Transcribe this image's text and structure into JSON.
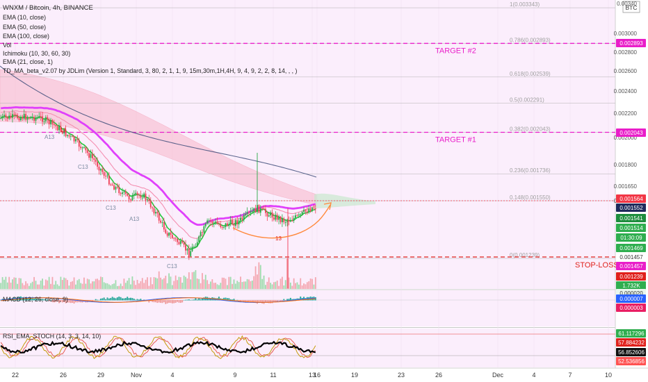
{
  "header": {
    "symbol": "WNXM / Bitcoin, 4h, BINANCE",
    "currency_label": "BTC",
    "indicators": [
      "EMA (10, close)",
      "EMA (50, close)",
      "EMA (100, close)",
      "Vol",
      "Ichimoku (10, 30, 60, 30)",
      "EMA (21, close, 1)",
      "TD_MA_beta_v2.07 by JDLim (Version 1, Standard, 3, 80, 2, 1, 1, 9, 15m,30m,1H,4H, 9, 4, 9, 2, 2, 8, 14, , , )"
    ]
  },
  "annotations": {
    "target2": "TARGET #2",
    "target1": "TARGET #1",
    "stoploss": "STOP-LOSS",
    "fib_levels": [
      {
        "text": "1(0.003343)",
        "price": 0.003343
      },
      {
        "text": "0.786(0.002893)",
        "price": 0.002893
      },
      {
        "text": "0.618(0.002539)",
        "price": 0.002539
      },
      {
        "text": "0.5(0.002291)",
        "price": 0.002291
      },
      {
        "text": "0.382(0.002043)",
        "price": 0.002043
      },
      {
        "text": "0.236(0.001736)",
        "price": 0.001736
      },
      {
        "text": "0.148(0.001550)",
        "price": 0.00155
      },
      {
        "text": "0(0.001239)",
        "price": 0.001239
      }
    ],
    "td_counts": [
      "A13",
      "13",
      "C13",
      "C13",
      "A13",
      "C13",
      "13"
    ]
  },
  "price_axis": {
    "ticks": [
      "0.00340",
      "0.003000",
      "0.002800",
      "0.002600",
      "0.002400",
      "0.002200",
      "0.002000",
      "0.001800",
      "0.001650",
      "0.001550"
    ],
    "tick_prices": [
      0.0034,
      0.003,
      0.0028,
      0.0026,
      0.0024,
      0.0022,
      0.002,
      0.0018,
      0.00165,
      0.00155
    ],
    "badges": [
      {
        "text": "0.002893",
        "price": 0.002893,
        "color": "#e91ec9"
      },
      {
        "text": "0.002043",
        "price": 0.002043,
        "color": "#e91ec9"
      },
      {
        "text": "0.001564",
        "price": 0.001564,
        "color": "#f23645"
      },
      {
        "text": "0.001552",
        "price": 0.001552,
        "color": "#1f2a5c"
      },
      {
        "text": "0.001541",
        "price": 0.001541,
        "color": "#1e8e3e"
      },
      {
        "text": "0.001514",
        "price": 0.001514,
        "color": "#2fae4f"
      },
      {
        "text": "01:30:09",
        "price": 0.00149,
        "color": "#2fae4f"
      },
      {
        "text": "0.001469",
        "price": 0.001469,
        "color": "#2fae4f"
      },
      {
        "text": "0.001457",
        "price": 0.001457,
        "color": "#ffffff",
        "text_color": "#333333"
      },
      {
        "text": "0.001457",
        "price": 0.001447,
        "color": "#e91ec9"
      },
      {
        "text": "0.001239",
        "price": 0.001239,
        "color": "#e0211c"
      },
      {
        "text": "1.732K",
        "price": 0.00121,
        "color": "#2fae4f"
      }
    ]
  },
  "macd": {
    "label": "MACD (12, 26, close, 9)",
    "badges": [
      {
        "text": "0.000020",
        "color": "#e9f6ee",
        "text_color": "#333333"
      },
      {
        "text": "0.000007",
        "color": "#2962ff"
      },
      {
        "text": "0.000003",
        "color": "#e91e63"
      }
    ]
  },
  "rsi": {
    "label": "RSI_EMA_STOCH (14, 3, 3, 14, 10)",
    "badges": [
      {
        "text": "61.117296",
        "color": "#2fae4f"
      },
      {
        "text": "57.884232",
        "color": "#e0211c"
      },
      {
        "text": "56.852606",
        "color": "#111111"
      },
      {
        "text": "52.536856",
        "color": "#ff5252"
      }
    ]
  },
  "time_axis": {
    "labels": [
      "22",
      "26",
      "29",
      "Nov",
      "4",
      "9",
      "11",
      "13",
      "16",
      "19",
      "23",
      "26",
      "Dec",
      "4",
      "7",
      "10"
    ]
  },
  "colors": {
    "up": "#26a844",
    "down": "#ef3d55",
    "ema10": "#27c93f",
    "ema50": "#e040fb",
    "ema100": "#3f4d7a",
    "ema21": "#f48fb1",
    "fib": "#b0b0b0",
    "target": "#e91ec9",
    "stoploss": "#e0211c",
    "projection": "#ff8a3d",
    "macd": "#2962ff",
    "signal": "#ff6d00",
    "rsi": "#000000",
    "k": "#c49a0a",
    "d": "#e65c52"
  },
  "chart_data": {
    "type": "candlestick",
    "title": "WNXM / Bitcoin, 4h, BINANCE",
    "x_dates": [
      "Oct 22",
      "Oct 26",
      "Oct 29",
      "Nov 1",
      "Nov 4",
      "Nov 9",
      "Nov 11",
      "Nov 13",
      "Nov 16",
      "Nov 19",
      "Nov 23",
      "Nov 26",
      "Dec 1",
      "Dec 4",
      "Dec 7",
      "Dec 10"
    ],
    "price_points": [
      {
        "x": "Oct 22",
        "close": 0.00223
      },
      {
        "x": "Oct 24",
        "close": 0.00219
      },
      {
        "x": "Oct 26",
        "close": 0.00212
      },
      {
        "x": "Oct 27",
        "close": 0.00201
      },
      {
        "x": "Oct 29",
        "close": 0.00182
      },
      {
        "x": "Oct 31",
        "close": 0.00167
      },
      {
        "x": "Nov 2",
        "close": 0.00158
      },
      {
        "x": "Nov 3",
        "close": 0.00149
      },
      {
        "x": "Nov 5",
        "close": 0.00132
      },
      {
        "x": "Nov 6",
        "close": 0.00124
      },
      {
        "x": "Nov 7",
        "close": 0.0014
      },
      {
        "x": "Nov 8",
        "close": 0.00147
      },
      {
        "x": "Nov 9",
        "close": 0.00151
      },
      {
        "x": "Nov 11",
        "close": 0.00154
      },
      {
        "x": "Nov 12",
        "close": 0.00153
      },
      {
        "x": "Nov 13",
        "close": 0.00148
      },
      {
        "x": "Nov 14",
        "close": 0.0015
      },
      {
        "x": "Nov 15",
        "close": 0.00152
      },
      {
        "x": "Nov 16",
        "close": 0.00156
      }
    ],
    "key_levels": {
      "target_2": 0.002893,
      "target_1": 0.002043,
      "stop_loss": 0.001457,
      "last_price": 0.001564
    },
    "ylim": [
      0.00115,
      0.00345
    ],
    "ylabel": "BTC"
  }
}
